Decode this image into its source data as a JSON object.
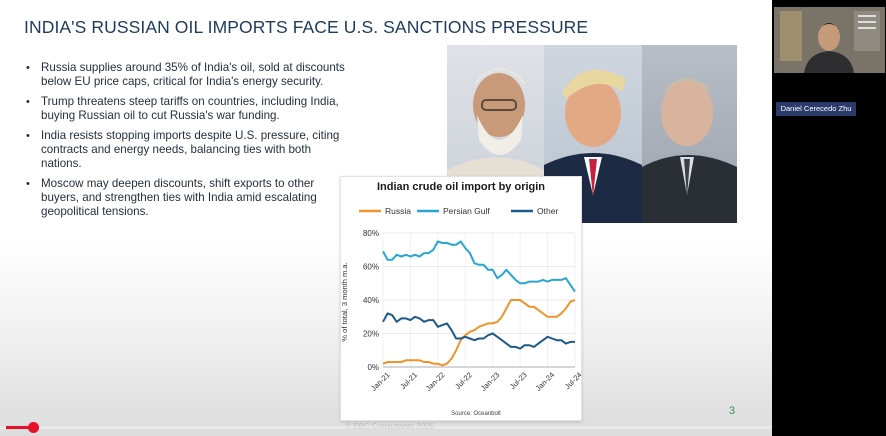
{
  "slide": {
    "title": "INDIA'S RUSSIAN OIL IMPORTS FACE U.S. SANCTIONS PRESSURE",
    "bullets": [
      "Russia supplies around 35% of India's oil, sold at discounts below EU price caps, critical for India's energy security.",
      "Trump threatens steep tariffs on countries, including India, buying Russian oil to cut Russia's war funding.",
      "India resists stopping imports despite U.S. pressure, citing contracts and energy needs, balancing ties with both nations.",
      "Moscow may deepen discounts, shift exports to other buyers, and strengthen ties with India amid escalating geopolitical tensions."
    ],
    "slide_number": "3",
    "footer": "© EBC Consultants 2025"
  },
  "participant": {
    "name": "Daniel Cerecedo Zhu"
  },
  "player": {
    "progress_fraction": 0.04
  },
  "colors": {
    "title": "#1f3a5f",
    "russia": "#f0932b",
    "persian_gulf": "#27a6d4",
    "other": "#1d5a8a",
    "progress": "#e8102a"
  },
  "chart_data": {
    "type": "line",
    "title": "Indian crude oil import by origin",
    "ylabel": "% of total, 3 month m.a.",
    "xlabel": "",
    "source": "Source: Oceanbolt",
    "x_ticks": [
      "Jan-21",
      "Jul-21",
      "Jan-22",
      "Jul-22",
      "Jan-23",
      "Jul-23",
      "Jan-24",
      "Jul-24"
    ],
    "y_ticks": [
      "0%",
      "20%",
      "40%",
      "60%",
      "80%"
    ],
    "ylim": [
      0,
      80
    ],
    "grid": true,
    "legend_position": "top",
    "x": [
      "2021-01",
      "2021-02",
      "2021-03",
      "2021-04",
      "2021-05",
      "2021-06",
      "2021-07",
      "2021-08",
      "2021-09",
      "2021-10",
      "2021-11",
      "2021-12",
      "2022-01",
      "2022-02",
      "2022-03",
      "2022-04",
      "2022-05",
      "2022-06",
      "2022-07",
      "2022-08",
      "2022-09",
      "2022-10",
      "2022-11",
      "2022-12",
      "2023-01",
      "2023-02",
      "2023-03",
      "2023-04",
      "2023-05",
      "2023-06",
      "2023-07",
      "2023-08",
      "2023-09",
      "2023-10",
      "2023-11",
      "2023-12",
      "2024-01",
      "2024-02",
      "2024-03",
      "2024-04",
      "2024-05",
      "2024-06",
      "2024-07"
    ],
    "series": [
      {
        "name": "Russia",
        "values": [
          2,
          3,
          3,
          3,
          3,
          4,
          4,
          4,
          4,
          3,
          3,
          2,
          2,
          1,
          2,
          5,
          10,
          16,
          19,
          21,
          22,
          24,
          25,
          26,
          26,
          27,
          30,
          35,
          40,
          40,
          40,
          38,
          36,
          36,
          34,
          32,
          30,
          30,
          30,
          32,
          35,
          39,
          40
        ]
      },
      {
        "name": "Persian Gulf",
        "values": [
          69,
          64,
          64,
          67,
          66,
          67,
          66,
          67,
          66,
          68,
          68,
          70,
          75,
          74,
          74,
          73,
          73,
          75,
          71,
          68,
          62,
          61,
          61,
          58,
          58,
          53,
          55,
          58,
          55,
          52,
          50,
          50,
          51,
          51,
          51,
          52,
          51,
          52,
          52,
          52,
          53,
          49,
          45
        ]
      },
      {
        "name": "Other",
        "values": [
          27,
          32,
          31,
          27,
          29,
          29,
          28,
          30,
          29,
          27,
          28,
          28,
          24,
          25,
          26,
          22,
          17,
          17,
          18,
          17,
          16,
          17,
          17,
          19,
          20,
          18,
          16,
          14,
          12,
          12,
          11,
          13,
          13,
          12,
          14,
          16,
          18,
          17,
          16,
          16,
          14,
          15,
          15
        ]
      }
    ]
  }
}
